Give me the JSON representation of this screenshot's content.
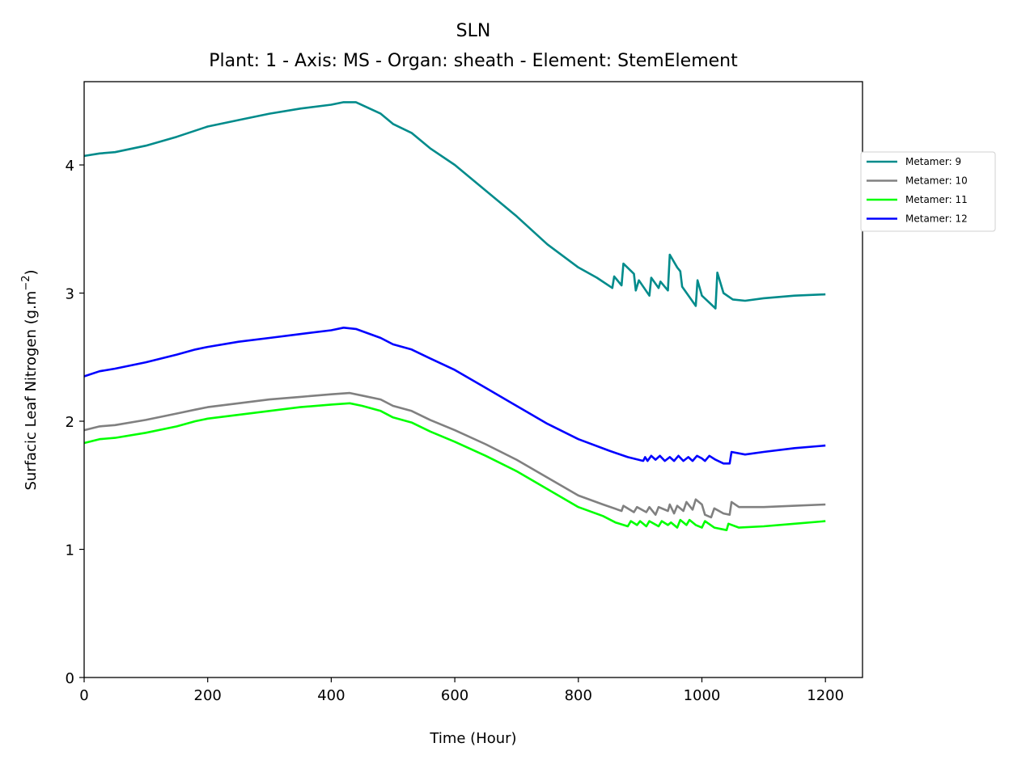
{
  "chart_data": {
    "type": "line",
    "title": "SLN",
    "subtitle": "Plant: 1 - Axis: MS - Organ: sheath - Element: StemElement",
    "xlabel": "Time (Hour)",
    "ylabel_main": "Surfacic Leaf Nitrogen (g.m",
    "ylabel_sup": "−2",
    "ylabel_tail": ")",
    "xlim": [
      0,
      1260
    ],
    "ylim": [
      0,
      4.65
    ],
    "xticks": [
      0,
      200,
      400,
      600,
      800,
      1000,
      1200
    ],
    "yticks": [
      0,
      1,
      2,
      3,
      4
    ],
    "grid": false,
    "legend_position": "right, outside the axes near the top",
    "series": [
      {
        "name": "Metamer: 9",
        "color": "#008b8b",
        "points": [
          [
            0,
            4.07
          ],
          [
            25,
            4.09
          ],
          [
            50,
            4.1
          ],
          [
            100,
            4.15
          ],
          [
            150,
            4.22
          ],
          [
            200,
            4.3
          ],
          [
            250,
            4.35
          ],
          [
            300,
            4.4
          ],
          [
            350,
            4.44
          ],
          [
            400,
            4.47
          ],
          [
            420,
            4.49
          ],
          [
            440,
            4.49
          ],
          [
            480,
            4.4
          ],
          [
            500,
            4.32
          ],
          [
            530,
            4.25
          ],
          [
            560,
            4.13
          ],
          [
            600,
            4.0
          ],
          [
            650,
            3.8
          ],
          [
            700,
            3.6
          ],
          [
            750,
            3.38
          ],
          [
            800,
            3.2
          ],
          [
            830,
            3.12
          ],
          [
            855,
            3.04
          ],
          [
            858,
            3.13
          ],
          [
            870,
            3.06
          ],
          [
            873,
            3.23
          ],
          [
            890,
            3.15
          ],
          [
            893,
            3.02
          ],
          [
            898,
            3.1
          ],
          [
            915,
            2.98
          ],
          [
            918,
            3.12
          ],
          [
            930,
            3.04
          ],
          [
            933,
            3.09
          ],
          [
            945,
            3.02
          ],
          [
            948,
            3.3
          ],
          [
            960,
            3.2
          ],
          [
            965,
            3.17
          ],
          [
            968,
            3.05
          ],
          [
            990,
            2.9
          ],
          [
            993,
            3.1
          ],
          [
            1000,
            2.98
          ],
          [
            1022,
            2.88
          ],
          [
            1025,
            3.16
          ],
          [
            1035,
            3.0
          ],
          [
            1050,
            2.95
          ],
          [
            1070,
            2.94
          ],
          [
            1100,
            2.96
          ],
          [
            1150,
            2.98
          ],
          [
            1200,
            2.99
          ]
        ]
      },
      {
        "name": "Metamer: 10",
        "color": "#808080",
        "points": [
          [
            0,
            1.93
          ],
          [
            25,
            1.96
          ],
          [
            50,
            1.97
          ],
          [
            100,
            2.01
          ],
          [
            150,
            2.06
          ],
          [
            180,
            2.09
          ],
          [
            200,
            2.11
          ],
          [
            250,
            2.14
          ],
          [
            300,
            2.17
          ],
          [
            350,
            2.19
          ],
          [
            400,
            2.21
          ],
          [
            430,
            2.22
          ],
          [
            450,
            2.2
          ],
          [
            480,
            2.17
          ],
          [
            500,
            2.12
          ],
          [
            530,
            2.08
          ],
          [
            560,
            2.01
          ],
          [
            600,
            1.93
          ],
          [
            650,
            1.82
          ],
          [
            700,
            1.7
          ],
          [
            750,
            1.56
          ],
          [
            800,
            1.42
          ],
          [
            840,
            1.35
          ],
          [
            870,
            1.3
          ],
          [
            873,
            1.34
          ],
          [
            890,
            1.29
          ],
          [
            895,
            1.33
          ],
          [
            910,
            1.29
          ],
          [
            915,
            1.33
          ],
          [
            925,
            1.27
          ],
          [
            930,
            1.33
          ],
          [
            945,
            1.3
          ],
          [
            948,
            1.35
          ],
          [
            955,
            1.28
          ],
          [
            960,
            1.34
          ],
          [
            970,
            1.3
          ],
          [
            975,
            1.37
          ],
          [
            985,
            1.31
          ],
          [
            990,
            1.39
          ],
          [
            1000,
            1.35
          ],
          [
            1005,
            1.27
          ],
          [
            1015,
            1.25
          ],
          [
            1020,
            1.32
          ],
          [
            1035,
            1.28
          ],
          [
            1045,
            1.27
          ],
          [
            1048,
            1.37
          ],
          [
            1060,
            1.33
          ],
          [
            1100,
            1.33
          ],
          [
            1150,
            1.34
          ],
          [
            1200,
            1.35
          ]
        ]
      },
      {
        "name": "Metamer: 11",
        "color": "#00ff00",
        "points": [
          [
            0,
            1.83
          ],
          [
            25,
            1.86
          ],
          [
            50,
            1.87
          ],
          [
            100,
            1.91
          ],
          [
            150,
            1.96
          ],
          [
            180,
            2.0
          ],
          [
            200,
            2.02
          ],
          [
            250,
            2.05
          ],
          [
            300,
            2.08
          ],
          [
            350,
            2.11
          ],
          [
            400,
            2.13
          ],
          [
            430,
            2.14
          ],
          [
            450,
            2.12
          ],
          [
            480,
            2.08
          ],
          [
            500,
            2.03
          ],
          [
            530,
            1.99
          ],
          [
            560,
            1.92
          ],
          [
            600,
            1.84
          ],
          [
            650,
            1.73
          ],
          [
            700,
            1.61
          ],
          [
            750,
            1.47
          ],
          [
            800,
            1.33
          ],
          [
            840,
            1.26
          ],
          [
            860,
            1.21
          ],
          [
            880,
            1.18
          ],
          [
            885,
            1.22
          ],
          [
            895,
            1.19
          ],
          [
            900,
            1.22
          ],
          [
            910,
            1.18
          ],
          [
            915,
            1.22
          ],
          [
            930,
            1.18
          ],
          [
            935,
            1.22
          ],
          [
            945,
            1.19
          ],
          [
            950,
            1.21
          ],
          [
            960,
            1.17
          ],
          [
            965,
            1.23
          ],
          [
            975,
            1.19
          ],
          [
            980,
            1.23
          ],
          [
            990,
            1.19
          ],
          [
            1000,
            1.17
          ],
          [
            1005,
            1.22
          ],
          [
            1020,
            1.17
          ],
          [
            1040,
            1.15
          ],
          [
            1043,
            1.2
          ],
          [
            1060,
            1.17
          ],
          [
            1100,
            1.18
          ],
          [
            1150,
            1.2
          ],
          [
            1200,
            1.22
          ]
        ]
      },
      {
        "name": "Metamer: 12",
        "color": "#0000ff",
        "points": [
          [
            0,
            2.35
          ],
          [
            25,
            2.39
          ],
          [
            50,
            2.41
          ],
          [
            100,
            2.46
          ],
          [
            150,
            2.52
          ],
          [
            180,
            2.56
          ],
          [
            200,
            2.58
          ],
          [
            250,
            2.62
          ],
          [
            300,
            2.65
          ],
          [
            350,
            2.68
          ],
          [
            400,
            2.71
          ],
          [
            420,
            2.73
          ],
          [
            440,
            2.72
          ],
          [
            480,
            2.65
          ],
          [
            500,
            2.6
          ],
          [
            530,
            2.56
          ],
          [
            560,
            2.49
          ],
          [
            600,
            2.4
          ],
          [
            650,
            2.26
          ],
          [
            700,
            2.12
          ],
          [
            750,
            1.98
          ],
          [
            800,
            1.86
          ],
          [
            850,
            1.77
          ],
          [
            880,
            1.72
          ],
          [
            905,
            1.69
          ],
          [
            908,
            1.72
          ],
          [
            912,
            1.69
          ],
          [
            918,
            1.73
          ],
          [
            925,
            1.7
          ],
          [
            932,
            1.73
          ],
          [
            940,
            1.69
          ],
          [
            948,
            1.72
          ],
          [
            955,
            1.69
          ],
          [
            962,
            1.73
          ],
          [
            970,
            1.69
          ],
          [
            978,
            1.72
          ],
          [
            985,
            1.69
          ],
          [
            992,
            1.73
          ],
          [
            1000,
            1.71
          ],
          [
            1005,
            1.69
          ],
          [
            1012,
            1.73
          ],
          [
            1022,
            1.7
          ],
          [
            1035,
            1.67
          ],
          [
            1045,
            1.67
          ],
          [
            1048,
            1.76
          ],
          [
            1070,
            1.74
          ],
          [
            1100,
            1.76
          ],
          [
            1150,
            1.79
          ],
          [
            1200,
            1.81
          ]
        ]
      }
    ]
  }
}
